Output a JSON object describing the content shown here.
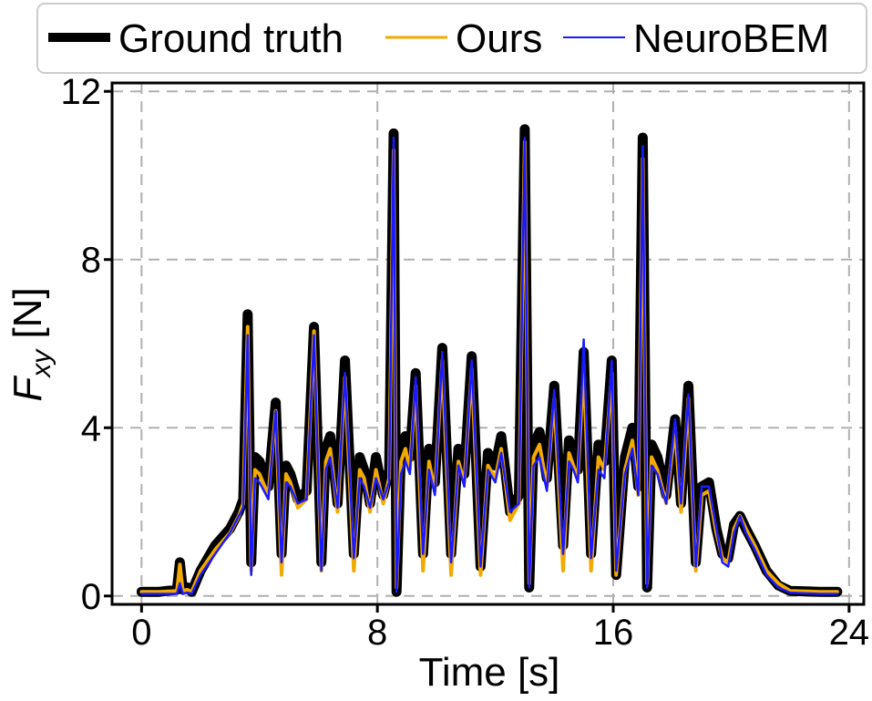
{
  "chart_data": {
    "type": "line",
    "xlabel": "Time [s]",
    "ylabel": {
      "main": "F",
      "sub": "xy",
      "unit": " [N]"
    },
    "xlim": [
      -1,
      24.5
    ],
    "ylim": [
      -0.2,
      12.2
    ],
    "xticks": [
      0,
      8,
      16,
      24
    ],
    "yticks": [
      0,
      4,
      8,
      12
    ],
    "grid": true,
    "legend_position": "top",
    "series": [
      {
        "name": "Ground truth",
        "color": "#000000",
        "x": [
          0,
          0.6,
          1.2,
          1.3,
          1.4,
          1.55,
          1.7,
          2.0,
          2.5,
          3.0,
          3.3,
          3.45,
          3.6,
          3.72,
          3.85,
          4.0,
          4.3,
          4.55,
          4.75,
          4.9,
          5.05,
          5.3,
          5.6,
          5.85,
          6.1,
          6.25,
          6.4,
          6.65,
          6.9,
          7.2,
          7.4,
          7.55,
          7.75,
          7.95,
          8.2,
          8.4,
          8.55,
          8.65,
          8.8,
          8.95,
          9.1,
          9.3,
          9.55,
          9.75,
          9.95,
          10.2,
          10.5,
          10.75,
          10.95,
          11.2,
          11.5,
          11.75,
          12.0,
          12.2,
          12.5,
          12.8,
          13.0,
          13.15,
          13.3,
          13.5,
          13.75,
          14.0,
          14.3,
          14.5,
          14.65,
          14.8,
          15.0,
          15.25,
          15.5,
          15.7,
          15.95,
          16.1,
          16.4,
          16.65,
          16.85,
          17.0,
          17.15,
          17.3,
          17.5,
          17.8,
          18.1,
          18.3,
          18.55,
          18.8,
          19.0,
          19.25,
          19.5,
          19.7,
          19.9,
          20.1,
          20.3,
          20.5,
          20.8,
          21.2,
          21.6,
          22.0,
          23.0,
          23.6
        ],
        "y": [
          0.1,
          0.1,
          0.15,
          0.8,
          0.15,
          0.2,
          0.1,
          0.6,
          1.2,
          1.6,
          2.0,
          2.3,
          6.7,
          0.8,
          3.3,
          3.2,
          2.6,
          4.6,
          1.0,
          3.1,
          2.9,
          2.3,
          2.5,
          6.4,
          0.8,
          3.5,
          3.8,
          2.2,
          5.6,
          1.0,
          3.3,
          3.0,
          2.2,
          3.3,
          2.4,
          3.0,
          11.0,
          0.1,
          3.5,
          3.8,
          3.3,
          5.3,
          1.0,
          3.5,
          2.7,
          5.9,
          1.0,
          3.5,
          2.9,
          5.7,
          0.7,
          3.4,
          3.1,
          3.8,
          2.0,
          2.4,
          11.1,
          0.2,
          3.6,
          3.9,
          2.8,
          5.0,
          1.2,
          3.7,
          3.4,
          3.0,
          5.8,
          1.0,
          3.6,
          3.2,
          5.6,
          0.5,
          3.3,
          4.0,
          2.6,
          10.9,
          0.2,
          3.6,
          3.3,
          2.4,
          4.2,
          2.2,
          5.0,
          0.8,
          2.6,
          2.7,
          1.6,
          1.0,
          0.9,
          1.7,
          1.9,
          1.6,
          1.2,
          0.6,
          0.25,
          0.12,
          0.1,
          0.1
        ]
      },
      {
        "name": "Ours",
        "color": "#f2a900",
        "x": [
          0,
          0.6,
          1.2,
          1.3,
          1.4,
          1.55,
          1.7,
          2.0,
          2.5,
          3.0,
          3.3,
          3.45,
          3.6,
          3.72,
          3.85,
          4.0,
          4.3,
          4.55,
          4.75,
          4.9,
          5.05,
          5.3,
          5.6,
          5.85,
          6.1,
          6.25,
          6.4,
          6.65,
          6.9,
          7.2,
          7.4,
          7.55,
          7.75,
          7.95,
          8.2,
          8.4,
          8.55,
          8.65,
          8.8,
          8.95,
          9.1,
          9.3,
          9.55,
          9.75,
          9.95,
          10.2,
          10.5,
          10.75,
          10.95,
          11.2,
          11.5,
          11.75,
          12.0,
          12.2,
          12.5,
          12.8,
          13.0,
          13.15,
          13.3,
          13.5,
          13.75,
          14.0,
          14.3,
          14.5,
          14.65,
          14.8,
          15.0,
          15.25,
          15.5,
          15.7,
          15.95,
          16.1,
          16.4,
          16.65,
          16.85,
          17.0,
          17.15,
          17.3,
          17.5,
          17.8,
          18.1,
          18.3,
          18.55,
          18.8,
          19.0,
          19.25,
          19.5,
          19.7,
          19.9,
          20.1,
          20.3,
          20.5,
          20.8,
          21.2,
          21.6,
          22.0,
          23.0,
          23.6
        ],
        "y": [
          0.1,
          0.1,
          0.12,
          0.75,
          0.12,
          0.15,
          0.1,
          0.6,
          1.1,
          1.5,
          1.9,
          2.2,
          6.4,
          0.6,
          3.0,
          2.9,
          2.4,
          4.4,
          0.5,
          2.9,
          2.7,
          2.1,
          2.3,
          6.3,
          0.6,
          3.2,
          3.5,
          2.0,
          5.2,
          0.6,
          3.0,
          2.8,
          2.0,
          3.0,
          2.2,
          2.8,
          10.6,
          0.2,
          3.2,
          3.5,
          3.0,
          5.0,
          0.6,
          3.2,
          2.5,
          5.6,
          0.5,
          3.2,
          2.7,
          5.4,
          0.5,
          3.1,
          2.8,
          3.5,
          1.8,
          2.2,
          10.8,
          0.3,
          3.3,
          3.6,
          2.6,
          4.7,
          0.6,
          3.4,
          3.1,
          2.8,
          5.5,
          0.6,
          3.3,
          3.0,
          5.3,
          0.5,
          3.0,
          3.7,
          2.4,
          10.4,
          0.3,
          3.3,
          3.0,
          2.2,
          4.0,
          2.0,
          4.7,
          0.6,
          2.4,
          2.5,
          1.5,
          0.9,
          0.8,
          1.6,
          1.9,
          1.6,
          1.2,
          0.6,
          0.3,
          0.12,
          0.1,
          0.1
        ]
      },
      {
        "name": "NeuroBEM",
        "color": "#1a1aff",
        "x": [
          0,
          0.6,
          1.2,
          1.3,
          1.4,
          1.55,
          1.7,
          2.0,
          2.5,
          3.0,
          3.3,
          3.45,
          3.6,
          3.72,
          3.85,
          4.0,
          4.3,
          4.55,
          4.75,
          4.9,
          5.05,
          5.3,
          5.6,
          5.85,
          6.1,
          6.25,
          6.4,
          6.65,
          6.9,
          7.2,
          7.4,
          7.55,
          7.75,
          7.95,
          8.2,
          8.4,
          8.55,
          8.65,
          8.8,
          8.95,
          9.1,
          9.3,
          9.55,
          9.75,
          9.95,
          10.2,
          10.5,
          10.75,
          10.95,
          11.2,
          11.5,
          11.75,
          12.0,
          12.2,
          12.5,
          12.8,
          13.0,
          13.15,
          13.3,
          13.5,
          13.75,
          14.0,
          14.3,
          14.5,
          14.65,
          14.8,
          15.0,
          15.25,
          15.5,
          15.7,
          15.95,
          16.1,
          16.4,
          16.65,
          16.85,
          17.0,
          17.15,
          17.3,
          17.5,
          17.8,
          18.1,
          18.3,
          18.55,
          18.8,
          19.0,
          19.25,
          19.5,
          19.7,
          19.9,
          20.1,
          20.3,
          20.5,
          20.8,
          21.2,
          21.6,
          22.0,
          23.0,
          23.6
        ],
        "y": [
          0.05,
          0.05,
          0.05,
          0.3,
          0.05,
          0.08,
          0.05,
          0.5,
          1.0,
          1.5,
          1.9,
          2.1,
          6.2,
          0.5,
          2.8,
          2.7,
          2.3,
          4.4,
          0.8,
          2.7,
          2.6,
          2.2,
          2.3,
          6.2,
          0.6,
          3.0,
          3.3,
          2.1,
          5.3,
          0.9,
          2.8,
          2.6,
          2.1,
          2.8,
          2.3,
          2.7,
          10.9,
          0.1,
          2.9,
          3.2,
          2.9,
          5.2,
          1.0,
          3.0,
          2.4,
          5.8,
          0.8,
          3.1,
          2.6,
          5.6,
          0.7,
          3.0,
          2.7,
          3.4,
          2.0,
          2.2,
          10.9,
          0.2,
          3.1,
          3.3,
          2.5,
          4.9,
          1.0,
          3.2,
          3.0,
          2.7,
          6.1,
          0.9,
          3.0,
          2.8,
          5.6,
          0.6,
          2.9,
          3.5,
          2.4,
          10.7,
          0.2,
          3.1,
          2.9,
          2.2,
          4.2,
          2.2,
          4.8,
          0.7,
          2.6,
          2.6,
          1.6,
          0.8,
          0.7,
          1.5,
          1.9,
          1.5,
          1.1,
          0.5,
          0.2,
          0.08,
          0.05,
          0.05
        ]
      }
    ]
  }
}
